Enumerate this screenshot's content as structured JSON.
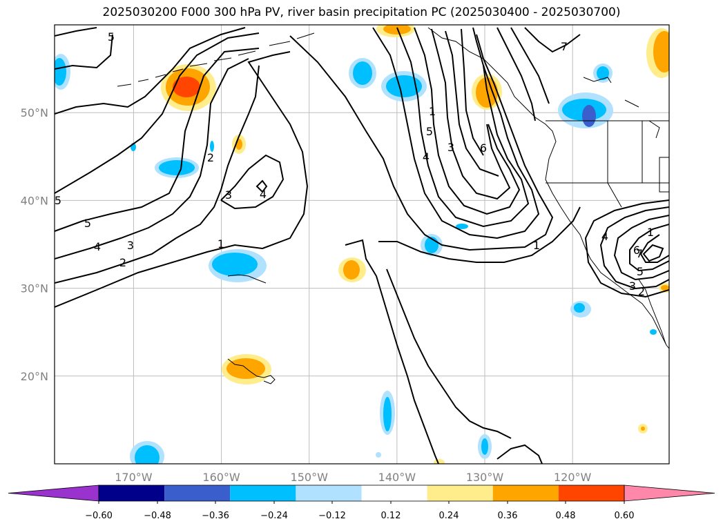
{
  "title": "2025030200 F000 300 hPa PV, river basin precipitation PC (2025030400 - 2025030700)",
  "map": {
    "projection": "plate-carree",
    "lon_range": [
      -179,
      -109
    ],
    "lat_range": [
      10,
      60
    ],
    "lat_ticks": [
      {
        "value": 50,
        "label": "50°N"
      },
      {
        "value": 40,
        "label": "40°N"
      },
      {
        "value": 30,
        "label": "30°N"
      },
      {
        "value": 20,
        "label": "20°N"
      }
    ],
    "lon_ticks": [
      {
        "value": -170,
        "label": "170°W"
      },
      {
        "value": -160,
        "label": "160°W"
      },
      {
        "value": -150,
        "label": "150°W"
      },
      {
        "value": -140,
        "label": "140°W"
      },
      {
        "value": -130,
        "label": "130°W"
      },
      {
        "value": -120,
        "label": "120°W"
      }
    ],
    "gridlines": true,
    "contour_labels": [
      "5",
      "2",
      "3",
      "4",
      "1",
      "5",
      "4",
      "3",
      "2",
      "1",
      "5",
      "4",
      "3",
      "6",
      "7",
      "1",
      "1",
      "6",
      "7",
      "4",
      "5",
      "3",
      "2",
      "5"
    ]
  },
  "colorbar": {
    "extend": "both",
    "levels": [
      "−0.60",
      "−0.48",
      "−0.36",
      "−0.24",
      "−0.12",
      "0.12",
      "0.24",
      "0.36",
      "0.48",
      "0.60"
    ],
    "colors": [
      "#9a32cd",
      "#00008b",
      "#3a5fcd",
      "#00bfff",
      "#b0e2ff",
      "#ffffff",
      "#ffec8b",
      "#ffa500",
      "#ff4500",
      "#b22222",
      "#ff88aa"
    ]
  }
}
